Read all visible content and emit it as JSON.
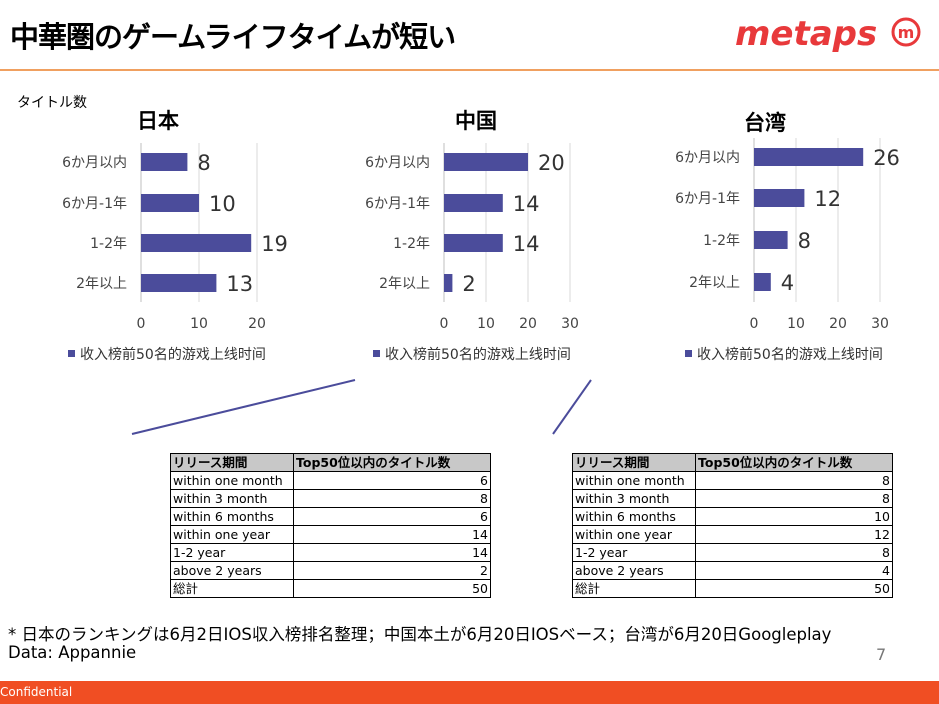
{
  "header": {
    "title": "中華圏のゲームライフタイムが短い",
    "logo_text": "metaps",
    "logo_mark": "m",
    "colors": {
      "logo": "#e8393b",
      "rule": "#f0a060"
    }
  },
  "y_note": "タイトル数",
  "colors": {
    "bar": "#4b4c9b",
    "footer": "#f04e23"
  },
  "chart_data": [
    {
      "type": "bar",
      "orientation": "horizontal",
      "title": "日本",
      "categories": [
        "6か月以内",
        "6か月-1年",
        "1-2年",
        "2年以上"
      ],
      "values": [
        8,
        10,
        19,
        13
      ],
      "xlim": [
        0,
        20
      ],
      "xticks": [
        "0",
        "10",
        "20"
      ],
      "legend": "收入榜前50名的游戏上线时间",
      "legend_position": "bottom"
    },
    {
      "type": "bar",
      "orientation": "horizontal",
      "title": "中国",
      "categories": [
        "6か月以内",
        "6か月-1年",
        "1-2年",
        "2年以上"
      ],
      "values": [
        20,
        14,
        14,
        2
      ],
      "xlim": [
        0,
        30
      ],
      "xticks": [
        "0",
        "10",
        "20",
        "30"
      ],
      "legend": "收入榜前50名的游戏上线时间",
      "legend_position": "bottom"
    },
    {
      "type": "bar",
      "orientation": "horizontal",
      "title": "台湾",
      "categories": [
        "6か月以内",
        "6か月-1年",
        "1-2年",
        "2年以上"
      ],
      "values": [
        26,
        12,
        8,
        4
      ],
      "xlim": [
        0,
        30
      ],
      "xticks": [
        "0",
        "10",
        "20",
        "30"
      ],
      "legend": "收入榜前50名的游戏上线时间",
      "legend_position": "bottom"
    }
  ],
  "tables": [
    {
      "headers": [
        "リリース期間",
        "Top50位以内のタイトル数"
      ],
      "rows": [
        [
          "within one month",
          "6"
        ],
        [
          "within 3 month",
          "8"
        ],
        [
          "within 6 months",
          "6"
        ],
        [
          "within one year",
          "14"
        ],
        [
          "1-2 year",
          "14"
        ],
        [
          "above 2 years",
          "2"
        ],
        [
          "総計",
          "50"
        ]
      ]
    },
    {
      "headers": [
        "リリース期間",
        "Top50位以内のタイトル数"
      ],
      "rows": [
        [
          "within one month",
          "8"
        ],
        [
          "within 3 month",
          "8"
        ],
        [
          "within 6 months",
          "10"
        ],
        [
          "within one year",
          "12"
        ],
        [
          "1-2 year",
          "8"
        ],
        [
          "above 2 years",
          "4"
        ],
        [
          "総計",
          "50"
        ]
      ]
    }
  ],
  "footnote": "* 日本のランキングは6月2日IOS収入榜排名整理；中国本土が6月20日IOSベース；台湾が6月20日Googleplay",
  "source": "Data: Appannie",
  "page_number": "7",
  "footer_label": "Confidential"
}
